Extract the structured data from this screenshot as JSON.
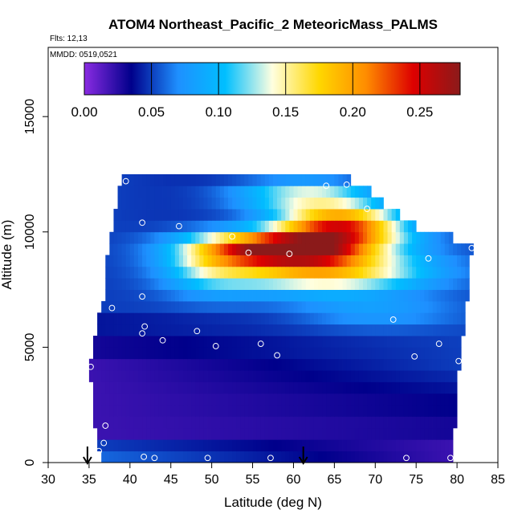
{
  "chart_data": {
    "type": "heatmap",
    "title": "ATOM4 Northeast_Pacific_2 MeteoricMass_PALMS",
    "flights_text": "Flts: 12,13",
    "date_text": "MMDD: 0519,0521",
    "xlabel": "Latitude (deg N)",
    "ylabel": "Altitude (m)",
    "xlim": [
      30,
      85
    ],
    "ylim": [
      0,
      18000
    ],
    "x_ticks": [
      "30",
      "35",
      "40",
      "45",
      "50",
      "55",
      "60",
      "65",
      "70",
      "75",
      "80",
      "85"
    ],
    "y_ticks": [
      "0",
      "5000",
      "10000",
      "15000"
    ],
    "colorbar": {
      "range": [
        0,
        0.28
      ],
      "ticks": [
        "0.00",
        "0.05",
        "0.10",
        "0.15",
        "0.20",
        "0.25"
      ],
      "tick_values": [
        0,
        0.05,
        0.1,
        0.15,
        0.2,
        0.25
      ],
      "colors": [
        "#8a2be2",
        "#00008b",
        "#1e90ff",
        "#00bfff",
        "#ffffe0",
        "#ffd700",
        "#ff8c00",
        "#dd0000",
        "#8b1a1a"
      ]
    },
    "arrows_lat": [
      34.8,
      61.2
    ],
    "layers": [
      {
        "alt": 250,
        "lat_min": 36.5,
        "lat_max": 79.5,
        "v_start": 0.06,
        "v_end": 0.02
      },
      {
        "alt": 750,
        "lat_min": 36.0,
        "lat_max": 79.5,
        "v_start": 0.05,
        "v_end": 0.02
      },
      {
        "alt": 1250,
        "lat_min": 36.0,
        "lat_max": 79.5,
        "v_start": 0.02,
        "v_end": 0.03
      },
      {
        "alt": 1750,
        "lat_min": 35.5,
        "lat_max": 80.0,
        "v_start": 0.02,
        "v_end": 0.03
      },
      {
        "alt": 2250,
        "lat_min": 35.5,
        "lat_max": 80.0,
        "v_start": 0.02,
        "v_end": 0.035
      },
      {
        "alt": 2750,
        "lat_min": 35.5,
        "lat_max": 80.0,
        "v_start": 0.02,
        "v_end": 0.035
      },
      {
        "alt": 3250,
        "lat_min": 35.5,
        "lat_max": 80.0,
        "v_start": 0.02,
        "v_end": 0.04
      },
      {
        "alt": 3750,
        "lat_min": 35.0,
        "lat_max": 80.0,
        "v_start": 0.02,
        "v_end": 0.045
      },
      {
        "alt": 4250,
        "lat_min": 35.0,
        "lat_max": 80.5,
        "v_start": 0.02,
        "v_end": 0.05
      },
      {
        "alt": 4750,
        "lat_min": 35.5,
        "lat_max": 80.5,
        "v_start": 0.03,
        "v_end": 0.05
      },
      {
        "alt": 5250,
        "lat_min": 35.5,
        "lat_max": 80.5,
        "v_start": 0.03,
        "v_end": 0.05
      },
      {
        "alt": 5750,
        "lat_min": 36.0,
        "lat_max": 81.0,
        "v_start": 0.04,
        "v_end": 0.05
      },
      {
        "alt": 6250,
        "lat_min": 36.0,
        "lat_max": 81.0,
        "v_start": 0.04,
        "v_end": 0.05
      },
      {
        "alt": 6750,
        "lat_min": 36.5,
        "lat_max": 81.0,
        "v_start": 0.05,
        "v_end": 0.05
      },
      {
        "alt": 7250,
        "lat_min": 37.0,
        "lat_max": 81.5,
        "v_start": 0.05,
        "v_end": 0.05
      },
      {
        "alt": 7750,
        "lat_min": 37.0,
        "lat_max": 81.5,
        "v_start": 0.05,
        "v_end": 0.05
      },
      {
        "alt": 8250,
        "lat_min": 37.0,
        "lat_max": 81.5,
        "v_start": 0.05,
        "v_end": 0.05
      },
      {
        "alt": 8750,
        "lat_min": 37.0,
        "lat_max": 81.5,
        "v_start": 0.05,
        "v_end": 0.05
      },
      {
        "alt": 9250,
        "lat_min": 37.5,
        "lat_max": 82.0,
        "v_start": 0.05,
        "v_end": 0.05
      },
      {
        "alt": 9750,
        "lat_min": 37.5,
        "lat_max": 79.5,
        "v_start": 0.05,
        "v_end": 0.05
      },
      {
        "alt": 10250,
        "lat_min": 38.0,
        "lat_max": 75.0,
        "v_start": 0.05,
        "v_end": 0.03
      },
      {
        "alt": 10750,
        "lat_min": 38.0,
        "lat_max": 73.0,
        "v_start": 0.05,
        "v_end": 0.03
      },
      {
        "alt": 11250,
        "lat_min": 38.5,
        "lat_max": 71.0,
        "v_start": 0.05,
        "v_end": 0.03
      },
      {
        "alt": 11750,
        "lat_min": 38.5,
        "lat_max": 69.5,
        "v_start": 0.05,
        "v_end": 0.03
      },
      {
        "alt": 12250,
        "lat_min": 39.0,
        "lat_max": 67.0,
        "v_start": 0.05,
        "v_end": 0.03
      }
    ],
    "blobs": [
      {
        "lat": 59,
        "alt": 9300,
        "amp": 0.22,
        "slat": 10,
        "salt": 700
      },
      {
        "lat": 66,
        "alt": 10300,
        "amp": 0.19,
        "slat": 8,
        "salt": 800
      },
      {
        "lat": 64,
        "alt": 8300,
        "amp": 0.13,
        "slat": 12,
        "salt": 900
      },
      {
        "lat": 62,
        "alt": 11600,
        "amp": 0.1,
        "slat": 9,
        "salt": 700
      },
      {
        "lat": 50,
        "alt": 8500,
        "amp": 0.06,
        "slat": 6,
        "salt": 1200
      },
      {
        "lat": 70,
        "alt": 6500,
        "amp": 0.03,
        "slat": 10,
        "salt": 700
      }
    ],
    "points": [
      {
        "lat": 39.5,
        "alt": 12200
      },
      {
        "lat": 64.0,
        "alt": 12000
      },
      {
        "lat": 66.5,
        "alt": 12050
      },
      {
        "lat": 69.0,
        "alt": 11000
      },
      {
        "lat": 41.5,
        "alt": 10400
      },
      {
        "lat": 46.0,
        "alt": 10250
      },
      {
        "lat": 52.5,
        "alt": 9800
      },
      {
        "lat": 54.5,
        "alt": 9100
      },
      {
        "lat": 59.5,
        "alt": 9050
      },
      {
        "lat": 76.5,
        "alt": 8850
      },
      {
        "lat": 81.8,
        "alt": 9300
      },
      {
        "lat": 41.5,
        "alt": 7200
      },
      {
        "lat": 37.8,
        "alt": 6700
      },
      {
        "lat": 72.2,
        "alt": 6200
      },
      {
        "lat": 41.8,
        "alt": 5900
      },
      {
        "lat": 41.5,
        "alt": 5600
      },
      {
        "lat": 48.2,
        "alt": 5700
      },
      {
        "lat": 44.0,
        "alt": 5300
      },
      {
        "lat": 50.5,
        "alt": 5050
      },
      {
        "lat": 56.0,
        "alt": 5150
      },
      {
        "lat": 58.0,
        "alt": 4650
      },
      {
        "lat": 74.8,
        "alt": 4600
      },
      {
        "lat": 77.8,
        "alt": 5150
      },
      {
        "lat": 80.2,
        "alt": 4400
      },
      {
        "lat": 35.2,
        "alt": 4150
      },
      {
        "lat": 37.0,
        "alt": 1600
      },
      {
        "lat": 36.8,
        "alt": 850
      },
      {
        "lat": 36.2,
        "alt": 500
      },
      {
        "lat": 41.7,
        "alt": 250
      },
      {
        "lat": 43.0,
        "alt": 200
      },
      {
        "lat": 49.5,
        "alt": 200
      },
      {
        "lat": 57.2,
        "alt": 200
      },
      {
        "lat": 73.8,
        "alt": 200
      },
      {
        "lat": 79.2,
        "alt": 200
      }
    ]
  }
}
